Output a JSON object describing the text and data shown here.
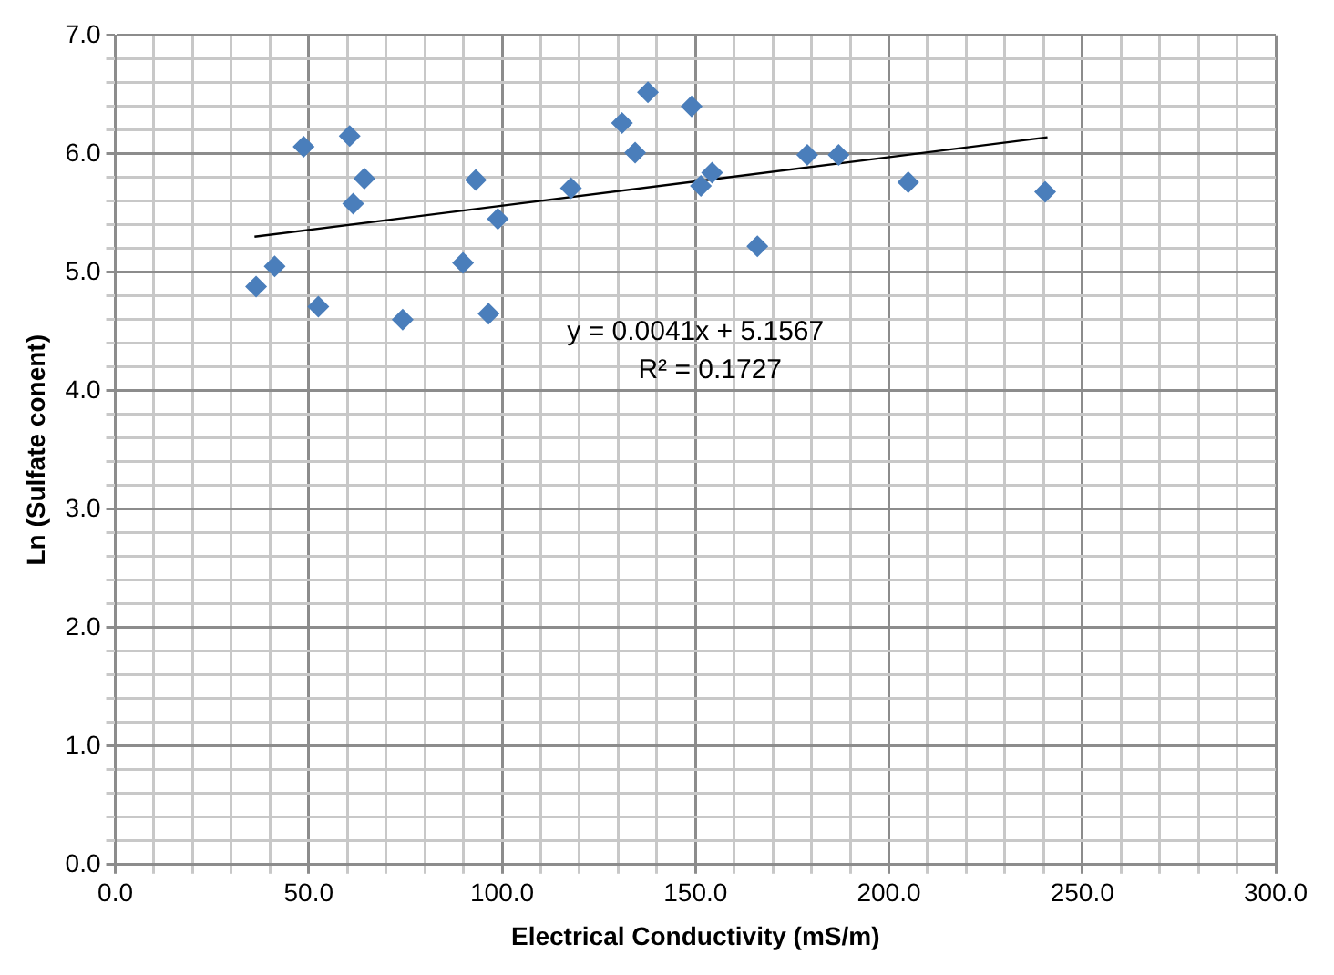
{
  "chart_data": {
    "type": "scatter",
    "xlabel": "Electrical Conductivity (mS/m)",
    "ylabel": "Ln (Sulfate conent)",
    "series": [
      {
        "type": "scatter",
        "color": "#4a7ebb",
        "marker": "diamond",
        "x": [
          36.4,
          41.2,
          48.7,
          52.5,
          60.6,
          61.5,
          64.4,
          74.3,
          89.9,
          93.2,
          96.5,
          98.9,
          117.8,
          131,
          134.4,
          137.7,
          149,
          151.4,
          154.3,
          166,
          178.9,
          187,
          205,
          240.4
        ],
        "values": [
          4.88,
          5.05,
          6.06,
          4.71,
          6.15,
          5.58,
          5.79,
          4.6,
          5.08,
          5.78,
          4.65,
          5.45,
          5.71,
          6.26,
          6.01,
          6.52,
          6.4,
          5.73,
          5.84,
          5.22,
          5.99,
          5.99,
          5.76,
          5.68
        ]
      },
      {
        "type": "line",
        "color": "#000000",
        "marker": "none",
        "x": [
          36,
          241
        ],
        "values": [
          5.3,
          6.14
        ]
      }
    ],
    "annotations": [
      "y = 0.0041x + 5.1567",
      "R² = 0.1727"
    ],
    "xlim": [
      0,
      300
    ],
    "ylim": [
      0,
      7
    ],
    "xticks": [
      {
        "value": 0,
        "label": "0.0"
      },
      {
        "value": 10,
        "label": null
      },
      {
        "value": 20,
        "label": null
      },
      {
        "value": 30,
        "label": null
      },
      {
        "value": 40,
        "label": null
      },
      {
        "value": 50,
        "label": "50.0"
      },
      {
        "value": 60,
        "label": null
      },
      {
        "value": 70,
        "label": null
      },
      {
        "value": 80,
        "label": null
      },
      {
        "value": 90,
        "label": null
      },
      {
        "value": 100,
        "label": "100.0"
      },
      {
        "value": 110,
        "label": null
      },
      {
        "value": 120,
        "label": null
      },
      {
        "value": 130,
        "label": null
      },
      {
        "value": 140,
        "label": null
      },
      {
        "value": 150,
        "label": "150.0"
      },
      {
        "value": 160,
        "label": null
      },
      {
        "value": 170,
        "label": null
      },
      {
        "value": 180,
        "label": null
      },
      {
        "value": 190,
        "label": null
      },
      {
        "value": 200,
        "label": "200.0"
      },
      {
        "value": 210,
        "label": null
      },
      {
        "value": 220,
        "label": null
      },
      {
        "value": 230,
        "label": null
      },
      {
        "value": 240,
        "label": null
      },
      {
        "value": 250,
        "label": "250.0"
      },
      {
        "value": 260,
        "label": null
      },
      {
        "value": 270,
        "label": null
      },
      {
        "value": 280,
        "label": null
      },
      {
        "value": 290,
        "label": null
      },
      {
        "value": 300,
        "label": "300.0"
      }
    ],
    "yticks": [
      {
        "value": 0,
        "label": "0.0"
      },
      {
        "value": 0.2,
        "label": null
      },
      {
        "value": 0.4,
        "label": null
      },
      {
        "value": 0.6,
        "label": null
      },
      {
        "value": 0.8,
        "label": null
      },
      {
        "value": 1,
        "label": "1.0"
      },
      {
        "value": 1.2,
        "label": null
      },
      {
        "value": 1.4,
        "label": null
      },
      {
        "value": 1.6,
        "label": null
      },
      {
        "value": 1.8,
        "label": null
      },
      {
        "value": 2,
        "label": "2.0"
      },
      {
        "value": 2.2,
        "label": null
      },
      {
        "value": 2.4,
        "label": null
      },
      {
        "value": 2.6,
        "label": null
      },
      {
        "value": 2.8,
        "label": null
      },
      {
        "value": 3,
        "label": "3.0"
      },
      {
        "value": 3.2,
        "label": null
      },
      {
        "value": 3.4,
        "label": null
      },
      {
        "value": 3.6,
        "label": null
      },
      {
        "value": 3.8,
        "label": null
      },
      {
        "value": 4,
        "label": "4.0"
      },
      {
        "value": 4.2,
        "label": null
      },
      {
        "value": 4.4,
        "label": null
      },
      {
        "value": 4.6,
        "label": null
      },
      {
        "value": 4.8,
        "label": null
      },
      {
        "value": 5,
        "label": "5.0"
      },
      {
        "value": 5.2,
        "label": null
      },
      {
        "value": 5.4,
        "label": null
      },
      {
        "value": 5.6,
        "label": null
      },
      {
        "value": 5.8,
        "label": null
      },
      {
        "value": 6,
        "label": "6.0"
      },
      {
        "value": 6.2,
        "label": null
      },
      {
        "value": 6.4,
        "label": null
      },
      {
        "value": 6.6,
        "label": null
      },
      {
        "value": 6.8,
        "label": null
      },
      {
        "value": 7,
        "label": "7.0"
      }
    ],
    "grid": true,
    "legend": false
  }
}
